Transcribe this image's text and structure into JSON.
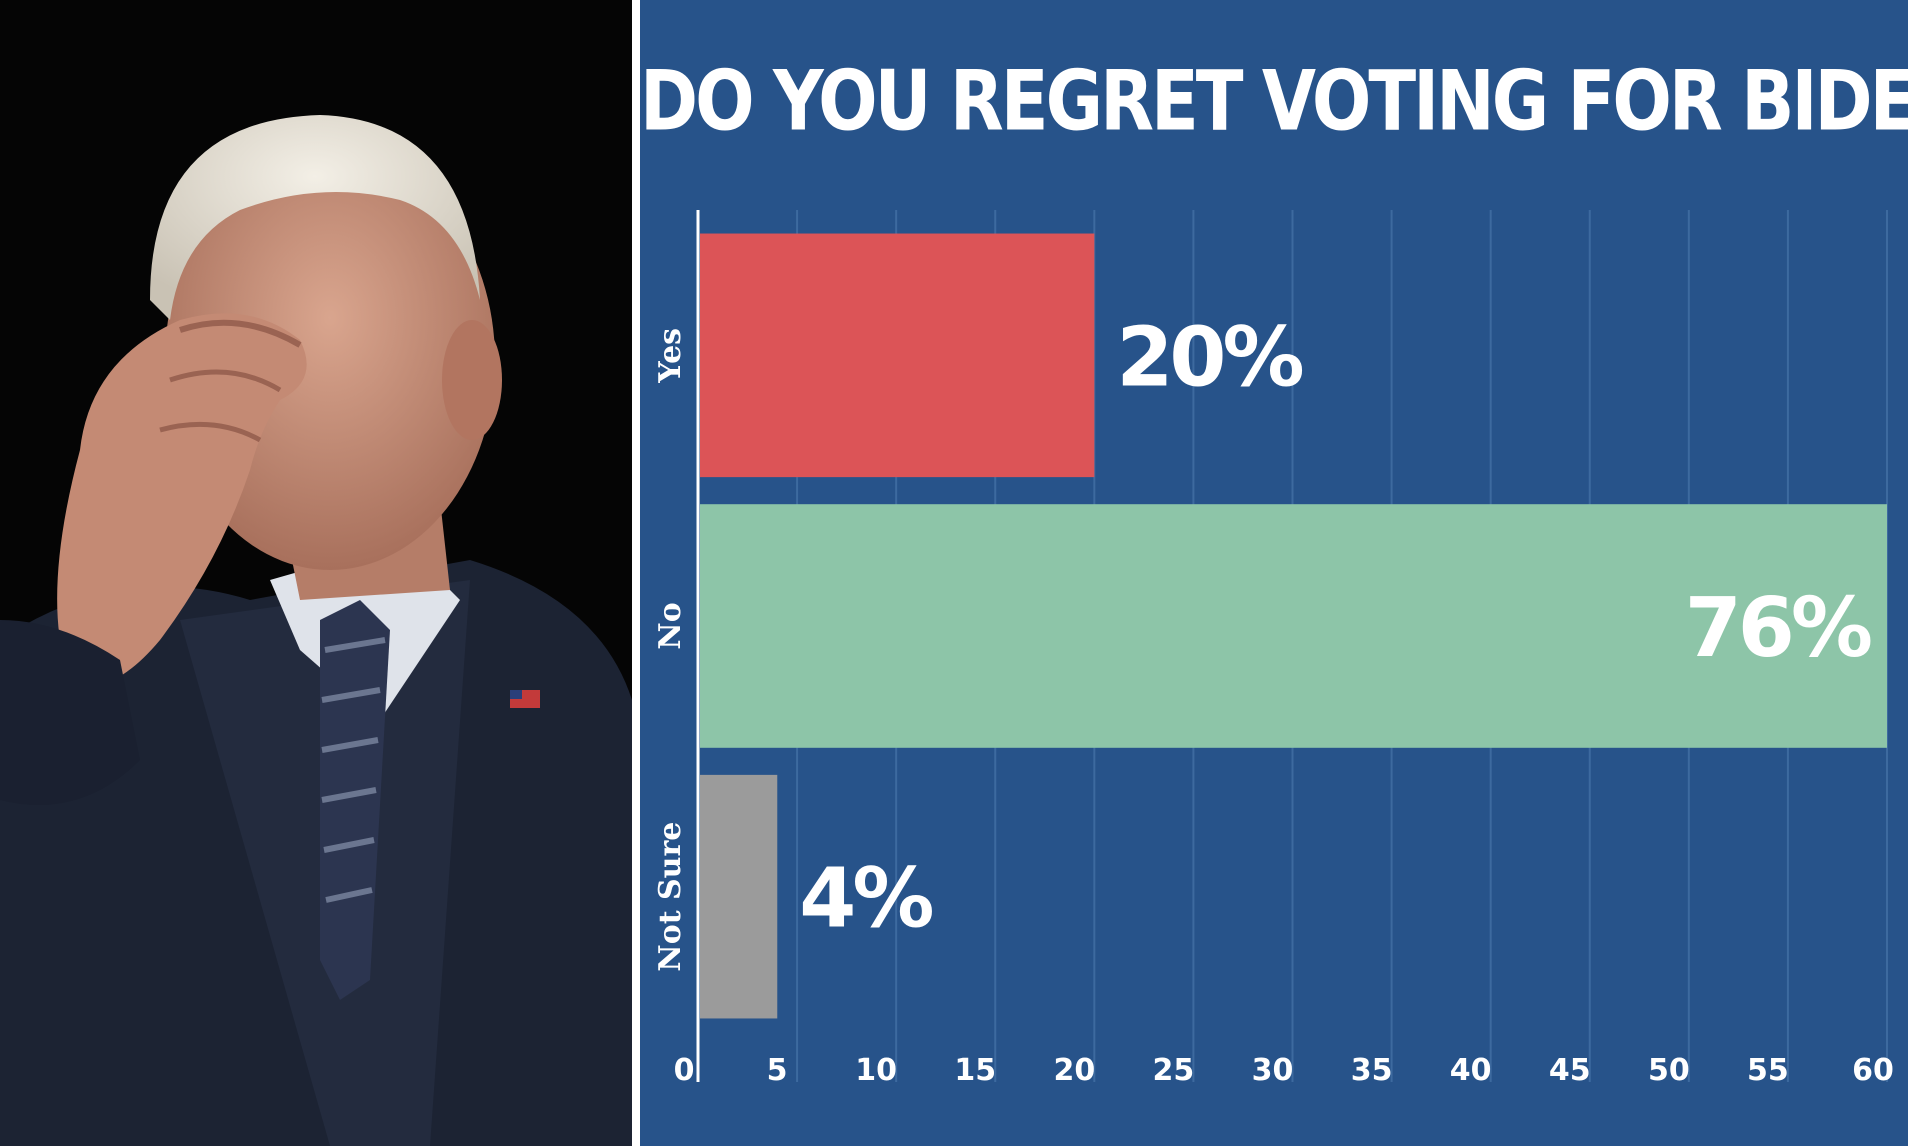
{
  "chart_data": {
    "type": "bar",
    "orientation": "horizontal",
    "title": "DO YOU REGRET VOTING FOR BIDEN?",
    "categories": [
      "Yes",
      "No",
      "Not Sure"
    ],
    "values": [
      20,
      76,
      4
    ],
    "value_labels": [
      "20%",
      "76%",
      "4%"
    ],
    "colors": [
      "#dc5457",
      "#8dc5a8",
      "#9b9b9b"
    ],
    "xlim": [
      0,
      60
    ],
    "xticks": [
      0,
      5,
      10,
      15,
      20,
      25,
      30,
      35,
      40,
      45,
      50,
      55,
      60
    ],
    "grid": true
  },
  "colors": {
    "chart_background": "#27538a",
    "gridline": "#3d6a9f",
    "photo_background": "#050505"
  }
}
